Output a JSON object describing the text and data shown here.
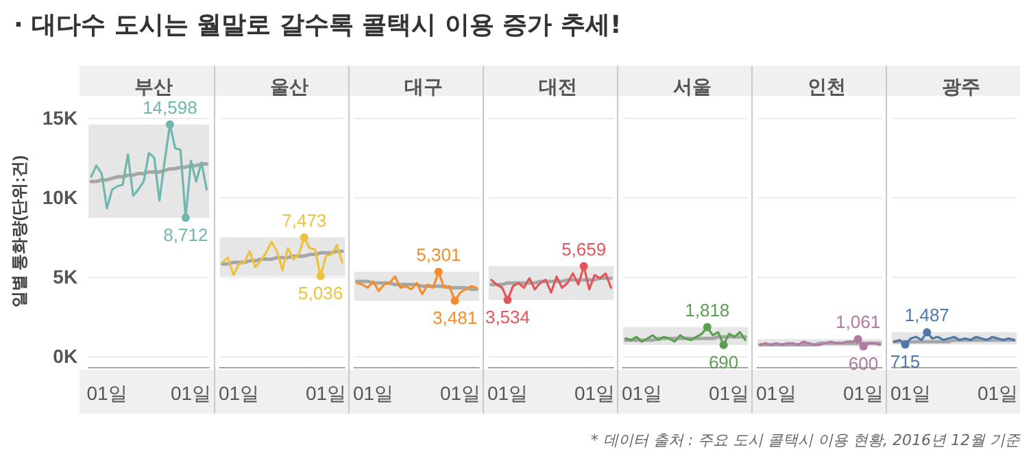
{
  "chart_data": [
    {
      "type": "line",
      "subtitle": "· 대다수 도시는 월말로 갈수록 콜택시 이용 증가 추세!",
      "title": "부산",
      "ylabel": "일별 통화량(단위:건)",
      "categories": [
        null,
        null,
        null,
        "01일",
        null,
        null,
        null,
        null,
        null,
        null,
        null,
        null,
        null,
        null,
        null,
        null,
        null,
        null,
        null,
        "01일",
        null,
        null,
        null
      ],
      "ylim": [
        -700,
        16400
      ],
      "yticks": [
        {
          "value": 0,
          "label": "0K"
        },
        {
          "value": 5000,
          "label": "5K"
        },
        {
          "value": 10000,
          "label": "10K"
        },
        {
          "value": 15000,
          "label": "15K"
        }
      ],
      "grid": "y",
      "series": [
        {
          "color": "#6fb7ad",
          "values": [
            11300,
            12000,
            11500,
            9300,
            10500,
            10700,
            10800,
            12700,
            10100,
            10500,
            11000,
            12800,
            12500,
            9800,
            12300,
            14598,
            13100,
            13000,
            8712,
            12300,
            11000,
            12200,
            10500
          ],
          "value_labels": [
            null,
            null,
            null,
            null,
            null,
            null,
            null,
            null,
            null,
            null,
            null,
            null,
            null,
            null,
            null,
            "14,598",
            null,
            null,
            "8,712",
            null,
            null,
            null,
            null
          ]
        },
        {
          "color": "#a6a6a6",
          "values": [
            11000,
            11000,
            11100,
            11100,
            11200,
            11300,
            11300,
            11400,
            11400,
            11500,
            11500,
            11600,
            11600,
            11600,
            11700,
            11800,
            11800,
            11900,
            11900,
            12000,
            12000,
            12100,
            12100
          ]
        }
      ],
      "bands": [
        {
          "axis": "y",
          "from": 8712,
          "to": 14598,
          "color": "#e6e6e6"
        }
      ]
    },
    {
      "type": "line",
      "title": "울산",
      "categories": [
        null,
        null,
        null,
        "01일",
        null,
        null,
        null,
        null,
        null,
        null,
        null,
        null,
        null,
        null,
        null,
        null,
        null,
        null,
        null,
        "01일",
        null,
        null,
        null
      ],
      "ylim": [
        -700,
        16400
      ],
      "yticks": [
        {
          "value": 0,
          "label": null
        },
        {
          "value": 5000,
          "label": null
        },
        {
          "value": 10000,
          "label": null
        },
        {
          "value": 15000,
          "label": null
        }
      ],
      "grid": "y",
      "tick_labels": "x",
      "series": [
        {
          "color": "#edc23e",
          "values": [
            5900,
            6200,
            5100,
            5800,
            5900,
            6600,
            5600,
            6000,
            6500,
            7200,
            6600,
            5400,
            6800,
            6100,
            6400,
            7473,
            6800,
            6700,
            5036,
            6300,
            6400,
            7000,
            5900
          ],
          "value_labels": [
            null,
            null,
            null,
            null,
            null,
            null,
            null,
            null,
            null,
            null,
            null,
            null,
            null,
            null,
            null,
            "7,473",
            null,
            null,
            "5,036",
            null,
            null,
            null,
            null
          ]
        },
        {
          "color": "#a6a6a6",
          "values": [
            5800,
            5800,
            5900,
            5900,
            5900,
            6000,
            6000,
            6100,
            6100,
            6100,
            6200,
            6200,
            6200,
            6300,
            6300,
            6300,
            6400,
            6400,
            6500,
            6500,
            6500,
            6600,
            6600
          ]
        }
      ],
      "bands": [
        {
          "axis": "y",
          "from": 5036,
          "to": 7473,
          "color": "#e6e6e6"
        }
      ]
    },
    {
      "type": "line",
      "title": "대구",
      "categories": [
        null,
        null,
        null,
        "01일",
        null,
        null,
        null,
        null,
        null,
        null,
        null,
        null,
        null,
        null,
        null,
        null,
        null,
        null,
        null,
        "01일",
        null,
        null,
        null
      ],
      "ylim": [
        -700,
        16400
      ],
      "yticks": [
        {
          "value": 0,
          "label": null
        },
        {
          "value": 5000,
          "label": null
        },
        {
          "value": 10000,
          "label": null
        },
        {
          "value": 15000,
          "label": null
        }
      ],
      "grid": "y",
      "tick_labels": "x",
      "series": [
        {
          "color": "#f28e2b",
          "values": [
            4600,
            4500,
            4300,
            4700,
            4100,
            4500,
            4600,
            5000,
            4300,
            4400,
            4200,
            4600,
            3900,
            4500,
            4300,
            5301,
            4300,
            4400,
            3481,
            4000,
            4200,
            4400,
            4300
          ],
          "value_labels": [
            null,
            null,
            null,
            null,
            null,
            null,
            null,
            null,
            null,
            null,
            null,
            null,
            null,
            null,
            null,
            "5,301",
            null,
            null,
            "3,481",
            null,
            null,
            null,
            null
          ]
        },
        {
          "color": "#a6a6a6",
          "values": [
            4700,
            4700,
            4700,
            4600,
            4600,
            4600,
            4600,
            4500,
            4500,
            4500,
            4500,
            4500,
            4400,
            4400,
            4400,
            4400,
            4400,
            4300,
            4300,
            4300,
            4300,
            4200,
            4200
          ]
        }
      ],
      "bands": [
        {
          "axis": "y",
          "from": 3481,
          "to": 5301,
          "color": "#e6e6e6"
        }
      ]
    },
    {
      "type": "line",
      "title": "대전",
      "categories": [
        null,
        null,
        null,
        "01일",
        null,
        null,
        null,
        null,
        null,
        null,
        null,
        null,
        null,
        null,
        null,
        null,
        null,
        null,
        null,
        "01일",
        null,
        null,
        null
      ],
      "ylim": [
        -700,
        16400
      ],
      "yticks": [
        {
          "value": 0,
          "label": null
        },
        {
          "value": 5000,
          "label": null
        },
        {
          "value": 10000,
          "label": null
        },
        {
          "value": 15000,
          "label": null
        }
      ],
      "grid": "y",
      "tick_labels": "x",
      "series": [
        {
          "color": "#e15759",
          "values": [
            4800,
            4500,
            4300,
            3534,
            4400,
            4600,
            4300,
            4900,
            4200,
            4600,
            4800,
            4000,
            5000,
            4300,
            4600,
            5200,
            4500,
            5659,
            4200,
            5100,
            4900,
            5200,
            4300
          ],
          "value_labels": [
            null,
            null,
            null,
            "3,534",
            null,
            null,
            null,
            null,
            null,
            null,
            null,
            null,
            null,
            null,
            null,
            null,
            null,
            "5,659",
            null,
            null,
            null,
            null,
            null
          ]
        },
        {
          "color": "#a6a6a6",
          "values": [
            4500,
            4500,
            4500,
            4600,
            4600,
            4600,
            4600,
            4600,
            4600,
            4700,
            4700,
            4700,
            4700,
            4700,
            4800,
            4800,
            4800,
            4800,
            4800,
            4800,
            4900,
            4900,
            4900
          ]
        }
      ],
      "bands": [
        {
          "axis": "y",
          "from": 3534,
          "to": 5659,
          "color": "#e6e6e6"
        }
      ]
    },
    {
      "type": "line",
      "title": "서울",
      "categories": [
        null,
        null,
        null,
        "01일",
        null,
        null,
        null,
        null,
        null,
        null,
        null,
        null,
        null,
        null,
        null,
        null,
        null,
        null,
        null,
        "01일",
        null,
        null,
        null
      ],
      "ylim": [
        -700,
        16400
      ],
      "yticks": [
        {
          "value": 0,
          "label": null
        },
        {
          "value": 5000,
          "label": null
        },
        {
          "value": 10000,
          "label": null
        },
        {
          "value": 15000,
          "label": null
        }
      ],
      "grid": "y",
      "tick_labels": "x",
      "series": [
        {
          "color": "#59a14f",
          "values": [
            1100,
            1000,
            1200,
            900,
            1100,
            1300,
            1000,
            1200,
            1100,
            900,
            1300,
            1100,
            1000,
            1200,
            1400,
            1818,
            1300,
            1500,
            690,
            1400,
            1200,
            1500,
            1000
          ],
          "value_labels": [
            null,
            null,
            null,
            null,
            null,
            null,
            null,
            null,
            null,
            null,
            null,
            null,
            null,
            null,
            null,
            "1,818",
            null,
            null,
            "690",
            null,
            null,
            null,
            null
          ]
        },
        {
          "color": "#a6a6a6",
          "values": [
            1000,
            1000,
            1000,
            1000,
            1000,
            1000,
            1100,
            1100,
            1100,
            1100,
            1100,
            1100,
            1100,
            1100,
            1100,
            1100,
            1100,
            1200,
            1200,
            1200,
            1200,
            1200,
            1200
          ]
        }
      ],
      "bands": [
        {
          "axis": "y",
          "from": 690,
          "to": 1818,
          "color": "#e6e6e6"
        }
      ]
    },
    {
      "type": "line",
      "title": "인천",
      "categories": [
        null,
        null,
        null,
        "01일",
        null,
        null,
        null,
        null,
        null,
        null,
        null,
        null,
        null,
        null,
        null,
        null,
        null,
        null,
        null,
        "01일",
        null,
        null,
        null
      ],
      "ylim": [
        -700,
        16400
      ],
      "yticks": [
        {
          "value": 0,
          "label": null
        },
        {
          "value": 5000,
          "label": null
        },
        {
          "value": 10000,
          "label": null
        },
        {
          "value": 15000,
          "label": null
        }
      ],
      "grid": "y",
      "tick_labels": "x",
      "series": [
        {
          "color": "#b07aa1",
          "values": [
            700,
            800,
            700,
            800,
            700,
            800,
            800,
            700,
            900,
            800,
            700,
            700,
            800,
            900,
            800,
            800,
            900,
            900,
            1061,
            600,
            800,
            800,
            700
          ],
          "value_labels": [
            null,
            null,
            null,
            null,
            null,
            null,
            null,
            null,
            null,
            null,
            null,
            null,
            null,
            null,
            null,
            null,
            null,
            null,
            "1,061",
            "600",
            null,
            null,
            null
          ]
        },
        {
          "color": "#a6a6a6",
          "values": [
            700,
            700,
            700,
            700,
            700,
            700,
            700,
            700,
            700,
            700,
            700,
            800,
            800,
            800,
            800,
            800,
            800,
            800,
            800,
            800,
            800,
            800,
            800
          ]
        }
      ],
      "bands": [
        {
          "axis": "y",
          "from": 600,
          "to": 1061,
          "color": "#e6e6e6"
        }
      ]
    },
    {
      "type": "line",
      "title": "광주",
      "categories": [
        null,
        null,
        null,
        "01일",
        null,
        null,
        null,
        null,
        null,
        null,
        null,
        null,
        null,
        null,
        null,
        null,
        null,
        null,
        null,
        "01일",
        null,
        null,
        null
      ],
      "ylim": [
        -700,
        16400
      ],
      "yticks": [
        {
          "value": 0,
          "label": null
        },
        {
          "value": 5000,
          "label": null
        },
        {
          "value": 10000,
          "label": null
        },
        {
          "value": 15000,
          "label": null
        }
      ],
      "grid": "y",
      "tick_labels": "x",
      "series": [
        {
          "color": "#4e79a7",
          "values": [
            900,
            1000,
            715,
            1100,
            1200,
            1000,
            1487,
            1100,
            1200,
            1000,
            1100,
            1200,
            1000,
            1100,
            1000,
            1200,
            1100,
            1000,
            1200,
            1100,
            1000,
            1100,
            1000
          ],
          "value_labels": [
            null,
            null,
            "715",
            null,
            null,
            null,
            "1,487",
            null,
            null,
            null,
            null,
            null,
            null,
            null,
            null,
            null,
            null,
            null,
            null,
            null,
            null,
            null,
            null
          ]
        },
        {
          "color": "#a6a6a6",
          "values": [
            900,
            900,
            900,
            900,
            900,
            900,
            900,
            900,
            900,
            900,
            900,
            1000,
            1000,
            1000,
            1000,
            1000,
            1000,
            1000,
            1000,
            1000,
            1000,
            1000,
            1000
          ]
        }
      ],
      "bands": [
        {
          "axis": "y",
          "from": 715,
          "to": 1487,
          "color": "#e6e6e6"
        }
      ],
      "annotations": [
        "* 데이터 출처 : 주요 도시 콜택시 이용 현황, 2016년 12월 기준"
      ]
    }
  ]
}
